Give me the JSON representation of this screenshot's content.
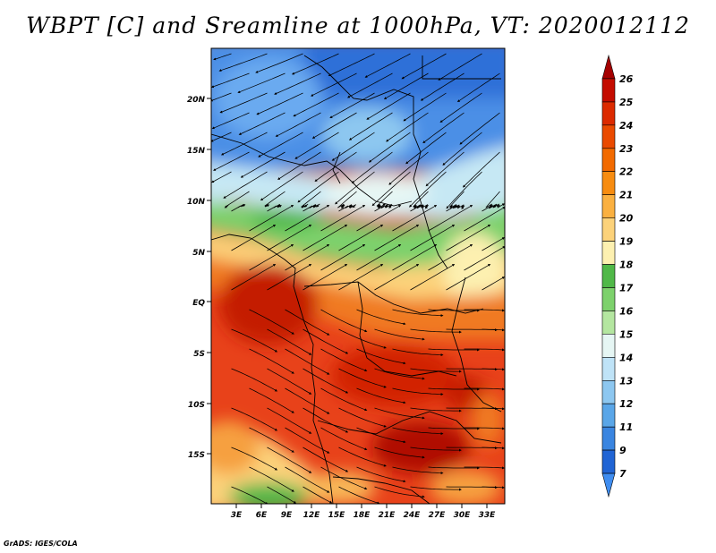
{
  "title": "WBPT [C] and Sreamline at 1000hPa, VT: 2020012112",
  "footer": "GrADS: IGES/COLA",
  "axes": {
    "lat_ticks": [
      "20N",
      "15N",
      "10N",
      "5N",
      "EQ",
      "5S",
      "10S",
      "15S"
    ],
    "lon_ticks": [
      "3E",
      "6E",
      "9E",
      "12E",
      "15E",
      "18E",
      "21E",
      "24E",
      "27E",
      "30E",
      "33E"
    ]
  },
  "colorbar": {
    "labels": [
      "26",
      "25",
      "24",
      "23",
      "22",
      "21",
      "20",
      "19",
      "18",
      "17",
      "16",
      "15",
      "14",
      "13",
      "12",
      "11",
      "9",
      "7"
    ],
    "colors": [
      "#a50000",
      "#c40c00",
      "#dc2a00",
      "#ea4a00",
      "#f26a00",
      "#f78c10",
      "#fab040",
      "#fcd27a",
      "#fdf0b0",
      "#50b848",
      "#7dd16c",
      "#b4e6a0",
      "#e6f6f4",
      "#bfe3f7",
      "#8dc7f0",
      "#5aa6e8",
      "#3a85e0",
      "#2064d4",
      "#3f8df0"
    ]
  }
}
